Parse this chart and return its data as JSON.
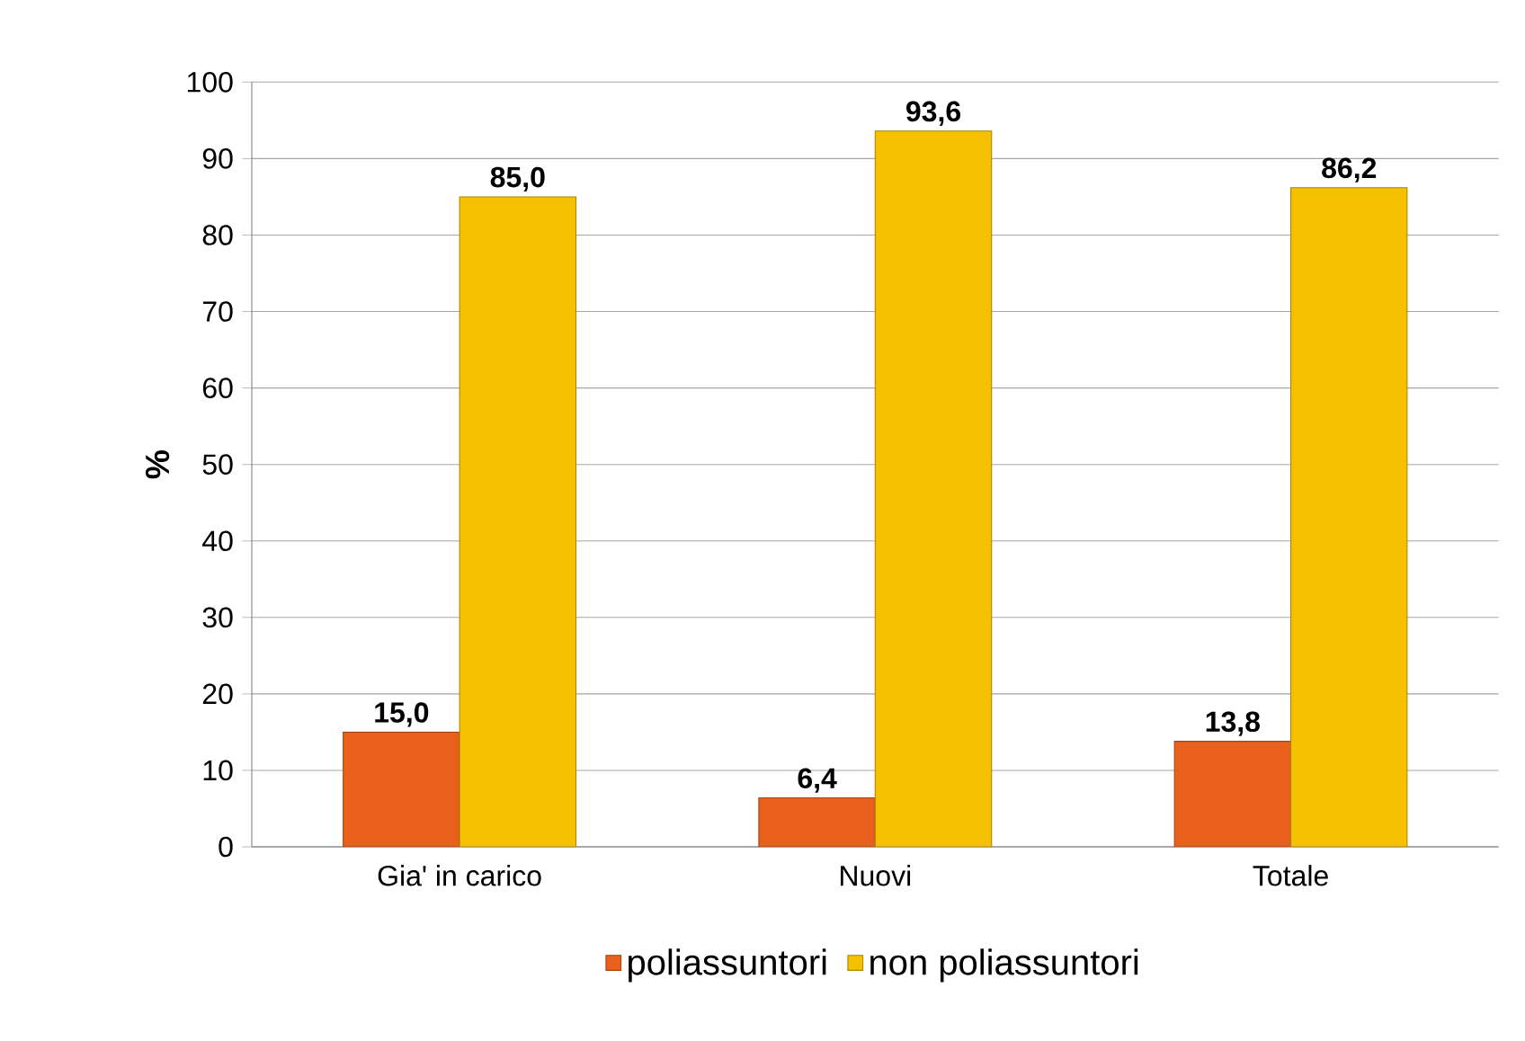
{
  "chart_data": {
    "type": "bar",
    "ylabel": "%",
    "categories": [
      "Gia' in carico",
      "Nuovi",
      "Totale"
    ],
    "series": [
      {
        "name": "poliassuntori",
        "color": "#e8601c",
        "values": [
          15.0,
          6.4,
          13.8
        ],
        "value_labels": [
          "15,0",
          "6,4",
          "13,8"
        ]
      },
      {
        "name": "non poliassuntori",
        "color": "#f5c000",
        "values": [
          85.0,
          93.6,
          86.2
        ],
        "value_labels": [
          "85,0",
          "93,6",
          "86,2"
        ]
      }
    ],
    "ylim": [
      0,
      100
    ],
    "yticks": [
      0,
      10,
      20,
      30,
      40,
      50,
      60,
      70,
      80,
      90,
      100
    ],
    "grid": "y",
    "legend": "bottom"
  }
}
